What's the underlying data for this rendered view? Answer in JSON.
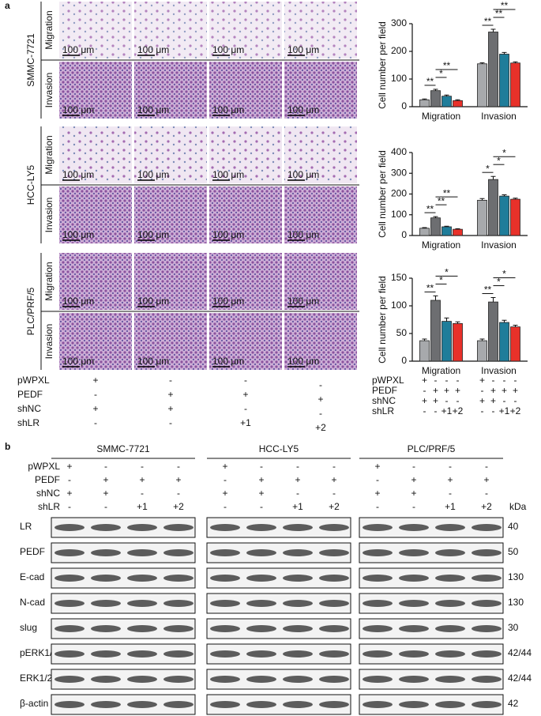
{
  "panel_a": {
    "label": "a",
    "cell_lines": [
      "SMMC-7721",
      "HCC-LY5",
      "PLC/PRF/5"
    ],
    "assays": [
      "Migration",
      "Invasion"
    ],
    "scale_bar": "100 μm"
  },
  "treatments": {
    "rows": [
      {
        "name": "pWPXL",
        "values": [
          "+",
          "-",
          "-",
          "-"
        ]
      },
      {
        "name": "PEDF",
        "values": [
          "-",
          "+",
          "+",
          "+"
        ]
      },
      {
        "name": "shNC",
        "values": [
          "+",
          "+",
          "-",
          "-"
        ]
      },
      {
        "name": "shLR",
        "values": [
          "-",
          "-",
          "+1",
          "+2"
        ]
      }
    ]
  },
  "chart_data": [
    {
      "type": "bar",
      "ylabel": "Cell number per field",
      "categories": [
        "Migration",
        "Invasion"
      ],
      "ylim": [
        0,
        300
      ],
      "yticks": [
        0,
        100,
        200,
        300
      ],
      "series": [
        {
          "color": "#a7a9ac",
          "values": [
            25,
            155
          ],
          "errors": [
            3,
            4
          ]
        },
        {
          "color": "#6d6e71",
          "values": [
            58,
            270
          ],
          "errors": [
            5,
            10
          ]
        },
        {
          "color": "#1f7d9a",
          "values": [
            38,
            190
          ],
          "errors": [
            4,
            6
          ]
        },
        {
          "color": "#e8312a",
          "values": [
            22,
            158
          ],
          "errors": [
            3,
            4
          ]
        }
      ],
      "significance": [
        [
          "**",
          "*",
          "**"
        ],
        [
          "**",
          "**",
          "**"
        ]
      ]
    },
    {
      "type": "bar",
      "ylabel": "Cell number per field",
      "categories": [
        "Migration",
        "Invasion"
      ],
      "ylim": [
        0,
        400
      ],
      "yticks": [
        0,
        100,
        200,
        300,
        400
      ],
      "series": [
        {
          "color": "#a7a9ac",
          "values": [
            35,
            170
          ],
          "errors": [
            3,
            8
          ]
        },
        {
          "color": "#6d6e71",
          "values": [
            85,
            270
          ],
          "errors": [
            6,
            15
          ]
        },
        {
          "color": "#1f7d9a",
          "values": [
            42,
            190
          ],
          "errors": [
            3,
            6
          ]
        },
        {
          "color": "#e8312a",
          "values": [
            30,
            175
          ],
          "errors": [
            3,
            5
          ]
        }
      ],
      "significance": [
        [
          "**",
          "**",
          "**"
        ],
        [
          "*",
          "*",
          "*"
        ]
      ]
    },
    {
      "type": "bar",
      "ylabel": "Cell number per field",
      "categories": [
        "Migration",
        "Invasion"
      ],
      "ylim": [
        0,
        150
      ],
      "yticks": [
        0,
        50,
        100,
        150
      ],
      "series": [
        {
          "color": "#a7a9ac",
          "values": [
            37,
            37
          ],
          "errors": [
            3,
            3
          ]
        },
        {
          "color": "#6d6e71",
          "values": [
            110,
            107
          ],
          "errors": [
            8,
            8
          ]
        },
        {
          "color": "#1f7d9a",
          "values": [
            72,
            70
          ],
          "errors": [
            6,
            4
          ]
        },
        {
          "color": "#e8312a",
          "values": [
            68,
            62
          ],
          "errors": [
            3,
            3
          ]
        }
      ],
      "significance": [
        [
          "**",
          "*",
          "*"
        ],
        [
          "**",
          "*",
          "*"
        ]
      ]
    }
  ],
  "panel_b": {
    "label": "b",
    "cell_lines": [
      "SMMC-7721",
      "HCC-LY5",
      "PLC/PRF/5"
    ],
    "kda_unit": "kDa",
    "proteins": [
      {
        "name": "LR",
        "kda": 40
      },
      {
        "name": "PEDF",
        "kda": 50
      },
      {
        "name": "E-cad",
        "kda": 130
      },
      {
        "name": "N-cad",
        "kda": 130
      },
      {
        "name": "slug",
        "kda": 30
      },
      {
        "name": "pERK1/2",
        "kda": "42/44"
      },
      {
        "name": "ERK1/2",
        "kda": "42/44"
      },
      {
        "name": "β-actin",
        "kda": 42
      }
    ]
  }
}
